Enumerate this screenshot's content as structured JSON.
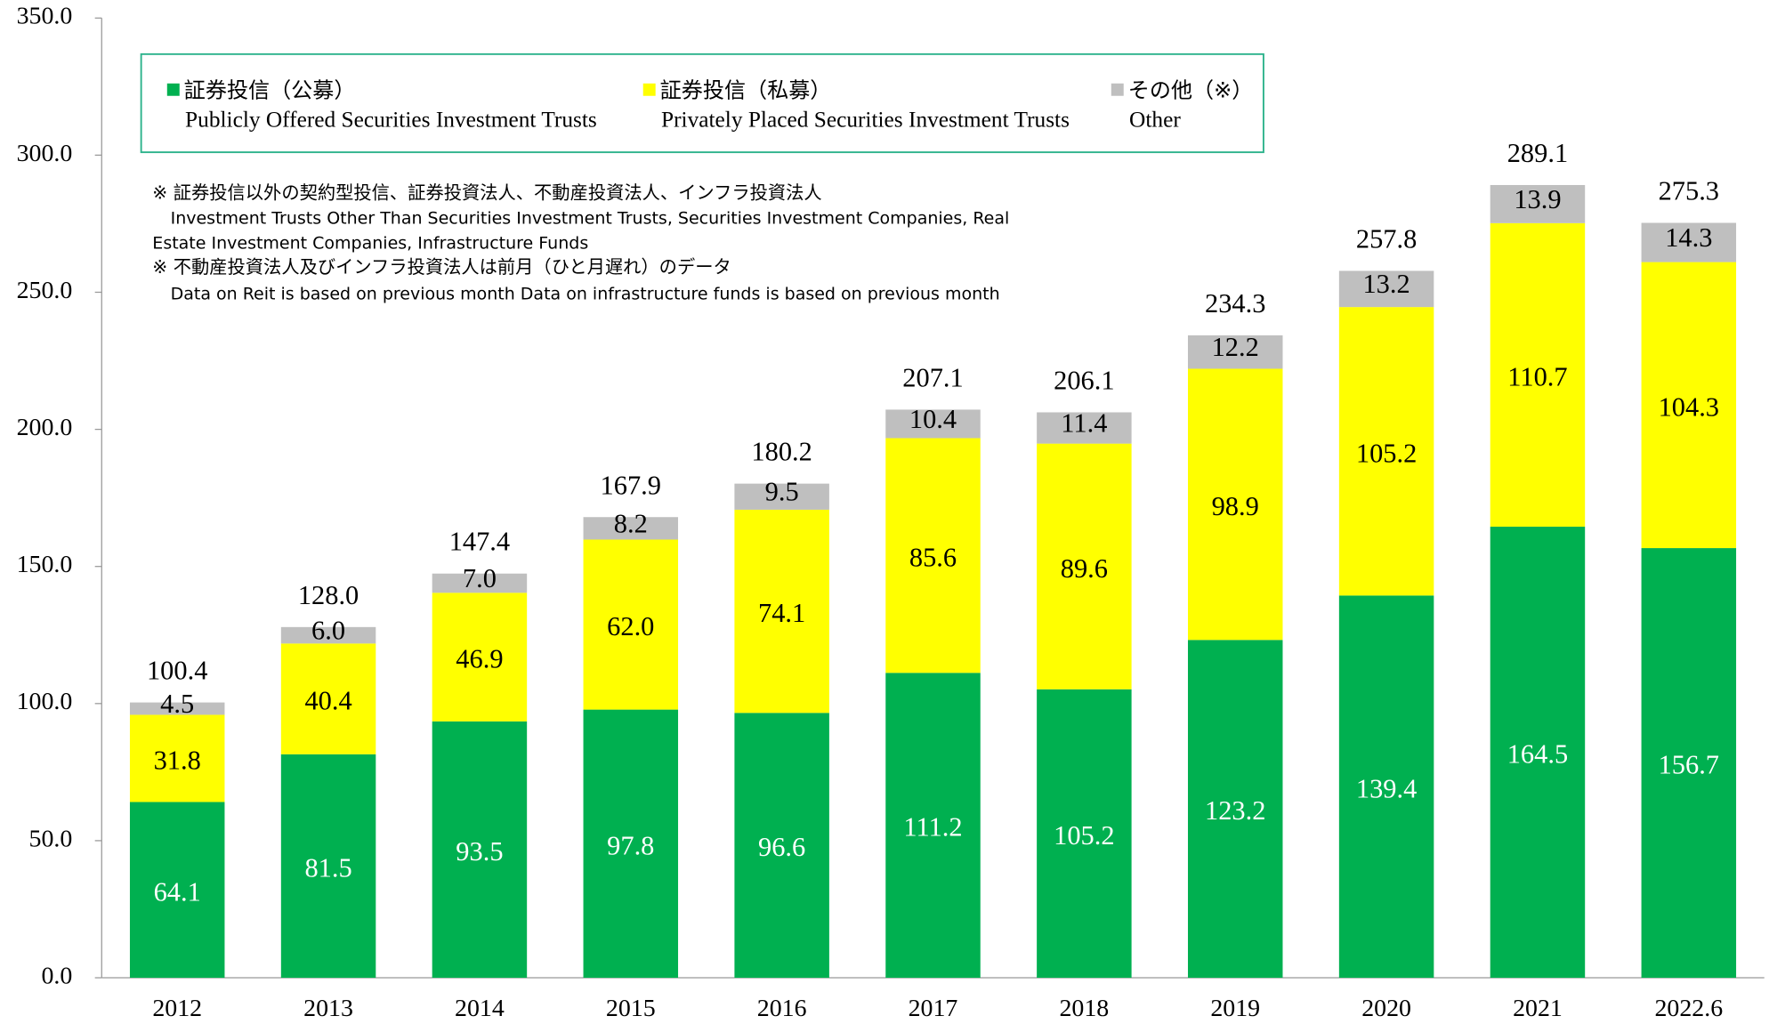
{
  "chart_data": {
    "type": "stacked_bar",
    "categories": [
      "2012",
      "2013",
      "2014",
      "2015",
      "2016",
      "2017",
      "2018",
      "2019",
      "2020",
      "2021",
      "2022.6"
    ],
    "series": [
      {
        "name": "証券投信（公募）",
        "name_en": "Publicly Offered Securities Investment Trusts",
        "color": "#00b050",
        "label_color": "#ffffff",
        "values": [
          64.1,
          81.5,
          93.5,
          97.8,
          96.6,
          111.2,
          105.2,
          123.2,
          139.4,
          164.5,
          156.7
        ]
      },
      {
        "name": "証券投信（私募）",
        "name_en": "Privately Placed Securities Investment Trusts",
        "color": "#ffff00",
        "label_color": "#000000",
        "values": [
          31.8,
          40.4,
          46.9,
          62.0,
          74.1,
          85.6,
          89.6,
          98.9,
          105.2,
          110.7,
          104.3
        ],
        "value_labels": [
          "31.8",
          "40.4",
          "46.9",
          "62.0",
          "74.1",
          "85.6",
          "89.6",
          "98.9",
          "105.2",
          "110.7",
          "104.3"
        ]
      },
      {
        "name": "その他（※）",
        "name_en": "Other",
        "color": "#bfbfbf",
        "label_color": "#000000",
        "values": [
          4.5,
          6.0,
          7.0,
          8.2,
          9.5,
          10.4,
          11.4,
          12.2,
          13.2,
          13.9,
          14.3
        ],
        "value_labels": [
          "4.5",
          "6.0",
          "7.0",
          "8.2",
          "9.5",
          "10.4",
          "11.4",
          "12.2",
          "13.2",
          "13.9",
          "14.3"
        ]
      }
    ],
    "totals": {
      "values": [
        100.4,
        128.0,
        147.4,
        167.9,
        180.2,
        207.1,
        206.1,
        234.3,
        257.8,
        289.1,
        275.3
      ],
      "value_labels": [
        "100.4",
        "128.0",
        "147.4",
        "167.9",
        "180.2",
        "207.1",
        "206.1",
        "234.3",
        "257.8",
        "289.1",
        "275.3"
      ]
    },
    "ylim": [
      0,
      350
    ],
    "yticks": [
      {
        "value": 0,
        "label": "0.0"
      },
      {
        "value": 50,
        "label": "50.0"
      },
      {
        "value": 100,
        "label": "100.0"
      },
      {
        "value": 150,
        "label": "150.0"
      },
      {
        "value": 200,
        "label": "200.0"
      },
      {
        "value": 250,
        "label": "250.0"
      },
      {
        "value": 300,
        "label": "300.0"
      },
      {
        "value": 350,
        "label": "350.0"
      }
    ],
    "grid": false,
    "legend": "top-left",
    "notes": [
      "※ 証券投信以外の契約型投信、証券投資法人、不動産投資法人、インフラ投資法人",
      "Investment Trusts Other Than Securities Investment Trusts, Securities Investment Companies, Real",
      "Estate Investment Companies, Infrastructure Funds",
      "※ 不動産投資法人及びインフラ投資法人は前月（ひと月遅れ）のデータ",
      "Data on Reit is based on previous month Data on infrastructure funds is based on previous month"
    ]
  }
}
